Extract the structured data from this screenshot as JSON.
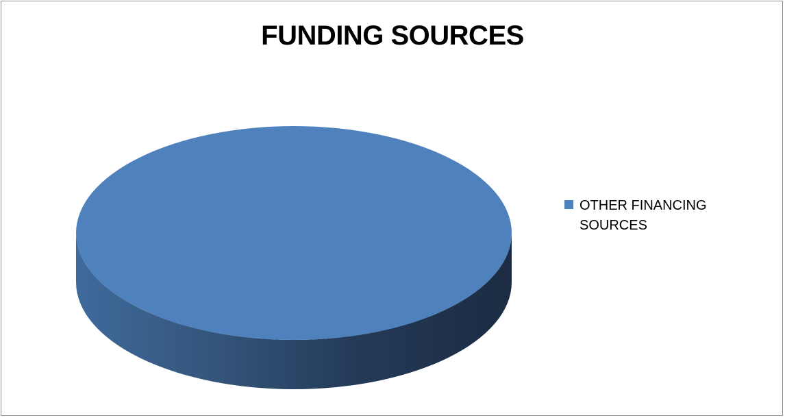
{
  "chart_data": {
    "type": "pie",
    "title": "FUNDING SOURCES",
    "labels": [
      "OTHER FINANCING SOURCES"
    ],
    "values": [
      100
    ],
    "colors": [
      "#4f81bd"
    ],
    "style": "3d",
    "legend_position": "right"
  }
}
